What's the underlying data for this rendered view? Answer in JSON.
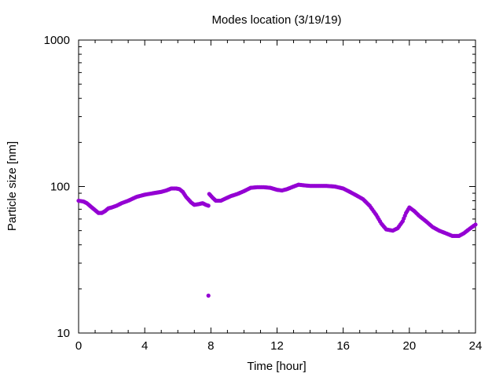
{
  "chart_data": {
    "type": "scatter",
    "title": "Modes location (3/19/19)",
    "xlabel": "Time [hour]",
    "ylabel": "Particle size [nm]",
    "xlim": [
      0,
      24
    ],
    "ylim": [
      10,
      1000
    ],
    "yscale": "log",
    "xticks": [
      0,
      4,
      8,
      12,
      16,
      20,
      24
    ],
    "xtick_labels": [
      "0",
      "4",
      "8",
      "12",
      "16",
      "20",
      "24"
    ],
    "yticks": [
      10,
      100,
      1000
    ],
    "ytick_labels": [
      "10",
      "100",
      "1000"
    ],
    "grid": false,
    "legend": "none",
    "marker_color": "#9400d3",
    "series": [
      {
        "points": [
          [
            0.0,
            80
          ],
          [
            0.3,
            79
          ],
          [
            0.5,
            77
          ],
          [
            0.8,
            72
          ],
          [
            1.0,
            69
          ],
          [
            1.2,
            66
          ],
          [
            1.4,
            66
          ],
          [
            1.6,
            68
          ],
          [
            1.8,
            71
          ],
          [
            2.0,
            72
          ],
          [
            2.3,
            74
          ],
          [
            2.6,
            77
          ],
          [
            3.0,
            80
          ],
          [
            3.5,
            85
          ],
          [
            4.0,
            88
          ],
          [
            4.5,
            90
          ],
          [
            5.0,
            92
          ],
          [
            5.3,
            94
          ],
          [
            5.6,
            97
          ],
          [
            5.9,
            97
          ],
          [
            6.1,
            96
          ],
          [
            6.3,
            92
          ],
          [
            6.5,
            85
          ],
          [
            6.8,
            78
          ],
          [
            7.0,
            75
          ],
          [
            7.3,
            76
          ],
          [
            7.5,
            77
          ],
          [
            7.7,
            75
          ],
          [
            7.85,
            74
          ],
          [
            7.85,
            18
          ],
          [
            7.9,
            89
          ],
          [
            8.1,
            84
          ],
          [
            8.3,
            80
          ],
          [
            8.6,
            80
          ],
          [
            8.9,
            83
          ],
          [
            9.2,
            86
          ],
          [
            9.6,
            89
          ],
          [
            10.0,
            93
          ],
          [
            10.4,
            98
          ],
          [
            10.8,
            99
          ],
          [
            11.2,
            99
          ],
          [
            11.6,
            98
          ],
          [
            12.0,
            95
          ],
          [
            12.3,
            94
          ],
          [
            12.6,
            96
          ],
          [
            13.0,
            100
          ],
          [
            13.3,
            103
          ],
          [
            13.6,
            102
          ],
          [
            14.0,
            101
          ],
          [
            14.5,
            101
          ],
          [
            15.0,
            101
          ],
          [
            15.5,
            100
          ],
          [
            16.0,
            97
          ],
          [
            16.4,
            92
          ],
          [
            16.8,
            87
          ],
          [
            17.2,
            82
          ],
          [
            17.6,
            74
          ],
          [
            18.0,
            64
          ],
          [
            18.3,
            56
          ],
          [
            18.6,
            51
          ],
          [
            19.0,
            50
          ],
          [
            19.3,
            52
          ],
          [
            19.6,
            58
          ],
          [
            19.8,
            66
          ],
          [
            20.0,
            72
          ],
          [
            20.3,
            68
          ],
          [
            20.6,
            63
          ],
          [
            21.0,
            58
          ],
          [
            21.4,
            53
          ],
          [
            21.8,
            50
          ],
          [
            22.2,
            48
          ],
          [
            22.6,
            46
          ],
          [
            23.0,
            46
          ],
          [
            23.3,
            48
          ],
          [
            23.6,
            51
          ],
          [
            23.9,
            54
          ],
          [
            24.0,
            55
          ]
        ]
      }
    ]
  }
}
